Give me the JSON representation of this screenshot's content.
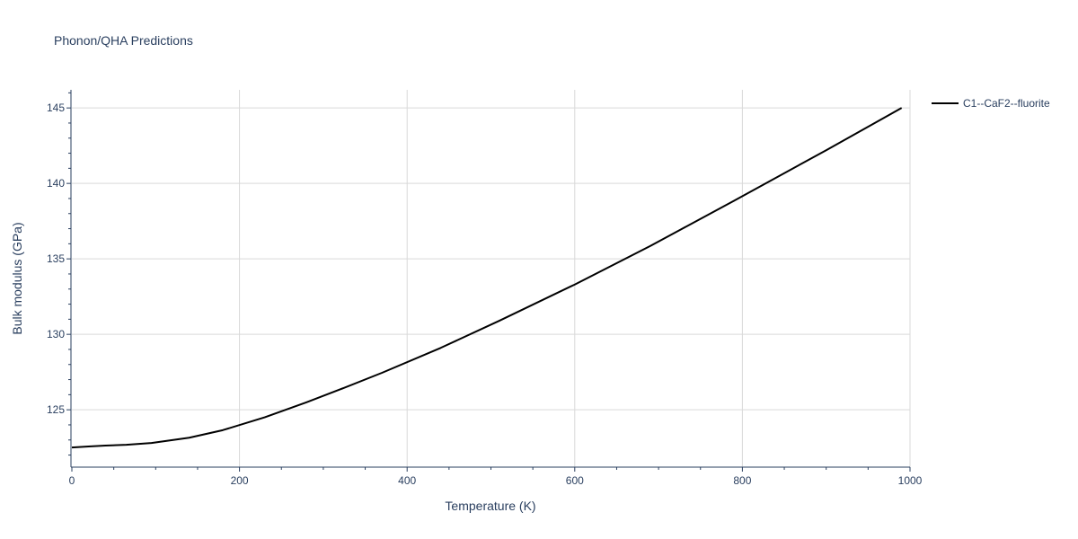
{
  "chart_data": {
    "type": "line",
    "title": "Phonon/QHA Predictions",
    "xlabel": "Temperature (K)",
    "ylabel": "Bulk modulus (GPa)",
    "xlim": [
      0,
      1000
    ],
    "ylim": [
      121.2,
      146.2
    ],
    "x_ticks": [
      0,
      200,
      400,
      600,
      800,
      1000
    ],
    "y_ticks": [
      125,
      130,
      135,
      140,
      145
    ],
    "grid": true,
    "legend_position": "top-right",
    "series": [
      {
        "name": "C1--CaF2--fluorite",
        "color": "#000000",
        "x": [
          0,
          20,
          40,
          65,
          95,
          140,
          180,
          230,
          280,
          320,
          370,
          440,
          510,
          600,
          690,
          790,
          900,
          990
        ],
        "y": [
          122.5,
          122.57,
          122.63,
          122.68,
          122.8,
          123.15,
          123.65,
          124.5,
          125.5,
          126.35,
          127.45,
          129.1,
          130.9,
          133.3,
          135.85,
          138.85,
          142.2,
          145.0
        ]
      }
    ]
  }
}
